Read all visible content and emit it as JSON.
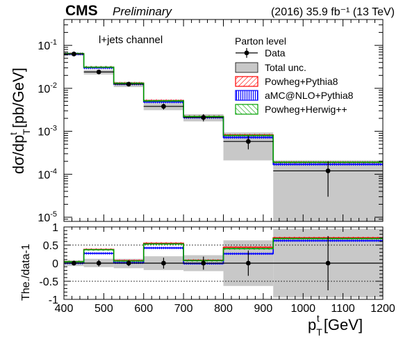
{
  "header": {
    "cms_label": "CMS",
    "preliminary_label": "Preliminary",
    "lumi_text": "(2016) 35.9 fb⁻¹ (13 TeV)"
  },
  "channel_label": "l+jets channel",
  "legend": {
    "title": "Parton level",
    "entries": [
      {
        "key": "data",
        "label": "Data"
      },
      {
        "key": "unc",
        "label": "Total unc."
      },
      {
        "key": "pp8",
        "label": "Powheg+Pythia8"
      },
      {
        "key": "amc",
        "label": "aMC@NLO+Pythia8"
      },
      {
        "key": "phw",
        "label": "Powheg+Herwig++"
      }
    ]
  },
  "axes": {
    "main_ylabel": "dσ/dp^t_T [pb/GeV]",
    "ratio_ylabel": "The./data-1",
    "xlabel": "p^t_T [GeV]"
  },
  "colors": {
    "data": "#000000",
    "unc_fill": "#c8c8c8",
    "pp8": "#ff0000",
    "amc": "#0000ff",
    "phw": "#00a000"
  },
  "chart_data": [
    {
      "type": "line",
      "panel": "main",
      "xscale": "linear",
      "yscale": "log",
      "xlim": [
        400,
        1200
      ],
      "ylim": [
        8e-06,
        0.4
      ],
      "xticks": [
        400,
        500,
        600,
        700,
        800,
        900,
        1000,
        1100,
        1200
      ],
      "yticks": [
        "10^-5",
        "10^-4",
        "10^-3",
        "10^-2",
        "10^-1"
      ],
      "bin_edges": [
        400,
        450,
        525,
        600,
        700,
        800,
        925,
        1200
      ],
      "data": {
        "x": [
          425,
          487.5,
          562.5,
          650,
          750,
          862.5,
          1062.5
        ],
        "y": [
          0.063,
          0.024,
          0.0125,
          0.0038,
          0.0021,
          0.00058,
          0.00012
        ],
        "yerr_low": [
          0.005,
          0.002,
          0.0012,
          0.0006,
          0.0004,
          0.0002,
          9e-05
        ],
        "yerr_high": [
          0.005,
          0.002,
          0.0012,
          0.0006,
          0.0004,
          0.0002,
          8e-05
        ]
      },
      "total_unc_band": {
        "low": [
          0.058,
          0.021,
          0.0107,
          0.0031,
          0.0017,
          0.00021,
          8.1e-06
        ],
        "high": [
          0.068,
          0.027,
          0.014,
          0.0045,
          0.0025,
          0.00094,
          0.00021
        ]
      },
      "series": [
        {
          "name": "Powheg+Pythia8",
          "values": [
            0.064,
            0.031,
            0.0132,
            0.0052,
            0.0022,
            0.00082,
            0.00019
          ]
        },
        {
          "name": "aMC@NLO+Pythia8",
          "values": [
            0.063,
            0.03,
            0.0126,
            0.0048,
            0.0021,
            0.00072,
            0.00017
          ]
        },
        {
          "name": "Powheg+Herwig++",
          "values": [
            0.064,
            0.031,
            0.0131,
            0.0051,
            0.0022,
            0.0008,
            0.00019
          ]
        }
      ]
    },
    {
      "type": "line",
      "panel": "ratio",
      "xlim": [
        400,
        1200
      ],
      "ylim": [
        -1,
        1
      ],
      "yticks": [
        -1,
        -0.5,
        0,
        0.5,
        1
      ],
      "bin_edges": [
        400,
        450,
        525,
        600,
        700,
        800,
        925,
        1200
      ],
      "data": {
        "x": [
          425,
          487.5,
          562.5,
          650,
          750,
          862.5,
          1062.5
        ],
        "y": [
          0,
          0,
          0,
          0,
          0,
          0,
          0
        ],
        "yerr_low": [
          0.05,
          0.09,
          0.08,
          0.15,
          0.18,
          0.35,
          0.75
        ],
        "yerr_high": [
          0.05,
          0.09,
          0.08,
          0.15,
          0.18,
          0.35,
          0.75
        ]
      },
      "total_unc_band": {
        "low": [
          -0.08,
          -0.11,
          -0.14,
          -0.19,
          -0.22,
          -0.63,
          -0.95
        ],
        "high": [
          0.08,
          0.12,
          0.12,
          0.19,
          0.22,
          0.63,
          0.95
        ]
      },
      "series": [
        {
          "name": "Powheg+Pythia8",
          "values": [
            0.04,
            0.38,
            0.07,
            0.55,
            0.08,
            0.44,
            0.7
          ]
        },
        {
          "name": "aMC@NLO+Pythia8",
          "values": [
            0.0,
            0.27,
            0.01,
            0.42,
            -0.01,
            0.26,
            0.62
          ]
        },
        {
          "name": "Powheg+Herwig++",
          "values": [
            0.04,
            0.37,
            0.06,
            0.53,
            0.07,
            0.4,
            0.68
          ]
        }
      ]
    }
  ]
}
